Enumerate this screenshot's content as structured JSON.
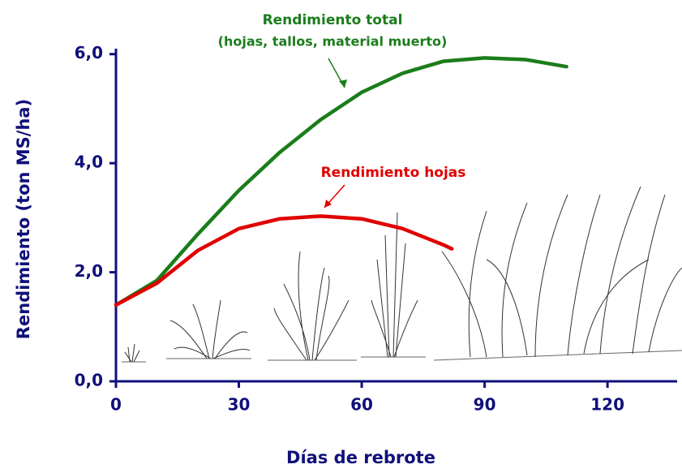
{
  "chart_data": {
    "type": "line",
    "xlabel": "Días de rebrote",
    "ylabel": "Rendimiento (ton MS/ha)",
    "annotations": [
      "(hojas, tallos, material muerto)"
    ],
    "xlim": [
      0,
      137
    ],
    "ylim": [
      0,
      6.1
    ],
    "xticks": [
      0,
      30,
      60,
      90,
      120
    ],
    "yticks": [
      {
        "value": 0,
        "label": "0,0"
      },
      {
        "value": 2,
        "label": "2,0"
      },
      {
        "value": 4,
        "label": "4,0"
      },
      {
        "value": 6,
        "label": "6,0"
      }
    ],
    "series": [
      {
        "name": "Rendimiento total",
        "color": "#1a7d1a",
        "x": [
          0,
          10,
          20,
          30,
          40,
          50,
          60,
          70,
          80,
          90,
          100,
          110
        ],
        "values": [
          1.4,
          1.85,
          2.7,
          3.5,
          4.2,
          4.8,
          5.3,
          5.65,
          5.87,
          5.93,
          5.9,
          5.77
        ]
      },
      {
        "name": "Rendimiento hojas",
        "color": "#e00000",
        "x": [
          0,
          10,
          20,
          30,
          40,
          50,
          60,
          70,
          80,
          82
        ],
        "values": [
          1.4,
          1.8,
          2.4,
          2.8,
          2.98,
          3.03,
          2.98,
          2.8,
          2.5,
          2.43
        ]
      }
    ]
  }
}
